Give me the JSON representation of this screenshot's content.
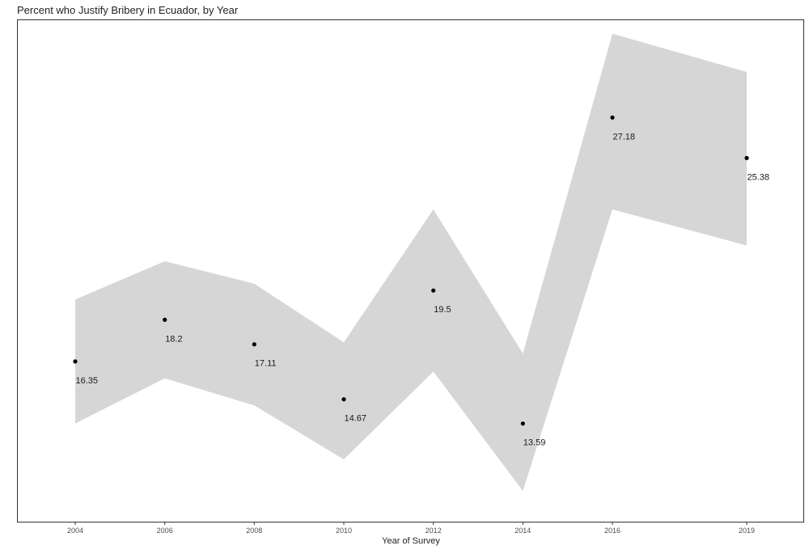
{
  "chart_data": {
    "type": "line",
    "title": "Percent who Justify Bribery in Ecuador, by Year",
    "xlabel": "Year of Survey",
    "ylabel": "",
    "categories": [
      "2004",
      "2006",
      "2008",
      "2010",
      "2012",
      "2014",
      "2016",
      "2019"
    ],
    "series": [
      {
        "values": [
          16.35,
          18.2,
          17.11,
          14.67,
          19.5,
          13.59,
          27.18,
          25.38
        ],
        "ci_lower": [
          13.6,
          15.6,
          14.4,
          12.0,
          15.9,
          10.6,
          23.1,
          21.5
        ],
        "ci_upper": [
          19.1,
          20.8,
          19.8,
          17.2,
          23.1,
          16.7,
          30.9,
          29.2
        ],
        "value_labels": [
          "16.35",
          "18.2",
          "17.11",
          "14.67",
          "19.5",
          "13.59",
          "27.18",
          "25.38"
        ]
      }
    ],
    "ylim": [
      9.2,
      31.5
    ],
    "grid": false,
    "legend": "none",
    "colors": {
      "ribbon": "#d6d6d6",
      "point": "#000000",
      "panel_border": "#333333"
    }
  }
}
